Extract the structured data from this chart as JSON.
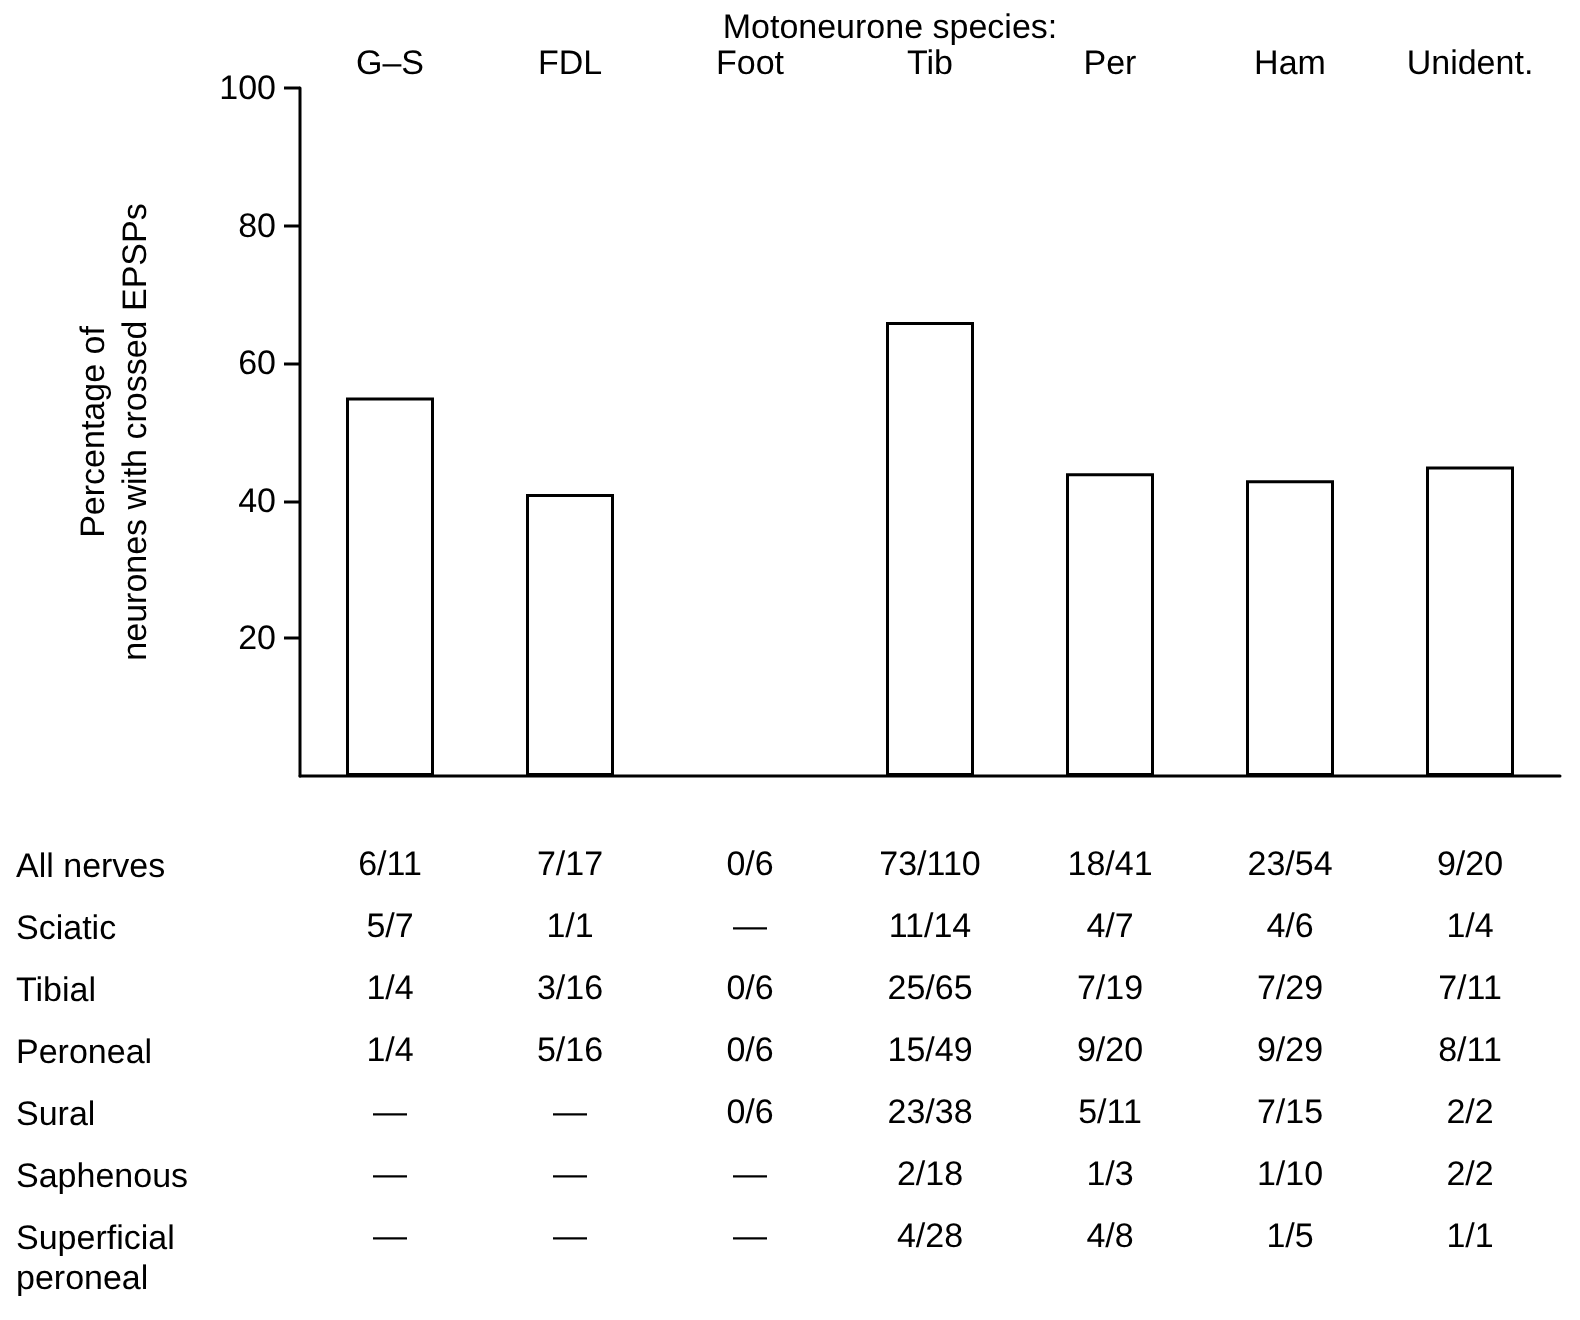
{
  "chart_data": {
    "type": "bar",
    "title": "Motoneurone species:",
    "ylabel": "Percentage of\nneurones with crossed EPSPs",
    "categories": [
      "G–S",
      "FDL",
      "Foot",
      "Tib",
      "Per",
      "Ham",
      "Unident."
    ],
    "values": [
      55,
      41,
      0,
      66,
      44,
      43,
      45
    ],
    "color": "#ffffff",
    "ylim": [
      0,
      100
    ],
    "yticks": [
      20,
      40,
      60,
      80,
      100
    ],
    "grid": false,
    "annotations": [
      "All nerves",
      "6/11",
      "7/17",
      "0/6",
      "73/110",
      "18/41",
      "23/54",
      "9/20",
      "Sciatic",
      "5/7",
      "1/1",
      "—",
      "11/14",
      "4/7",
      "4/6",
      "1/4",
      "Tibial",
      "1/4",
      "3/16",
      "0/6",
      "25/65",
      "7/19",
      "7/29",
      "7/11",
      "Peroneal",
      "1/4",
      "5/16",
      "0/6",
      "15/49",
      "9/20",
      "9/29",
      "8/11",
      "Sural",
      "—",
      "—",
      "0/6",
      "23/38",
      "5/11",
      "7/15",
      "2/2",
      "Saphenous",
      "—",
      "—",
      "—",
      "2/18",
      "1/3",
      "1/10",
      "2/2",
      "Superficial\nperoneal",
      "—",
      "—",
      "—",
      "4/28",
      "4/8",
      "1/5",
      "1/1"
    ]
  }
}
